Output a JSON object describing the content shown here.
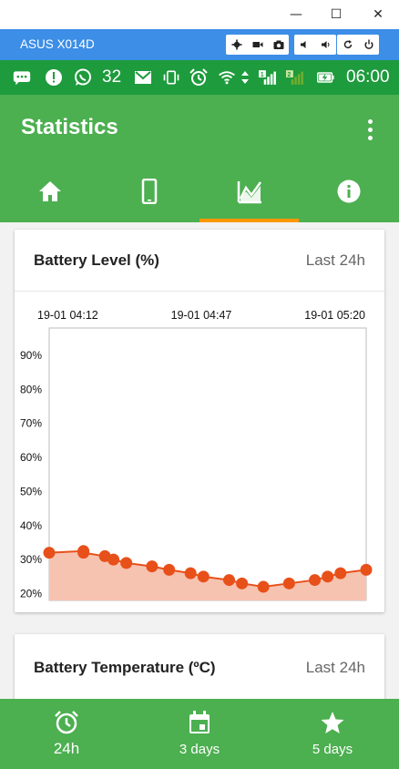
{
  "window": {
    "controls": [
      "—",
      "☐",
      "✕"
    ]
  },
  "emulator": {
    "device_name": "ASUS X014D"
  },
  "status_bar": {
    "notification_count": "32",
    "time": "06:00",
    "sim1": "1",
    "sim2": "2"
  },
  "app_bar": {
    "title": "Statistics",
    "tabs": [
      {
        "name": "home",
        "icon": "home-icon"
      },
      {
        "name": "device",
        "icon": "phone-icon"
      },
      {
        "name": "statistics",
        "icon": "chart-icon",
        "active": true
      },
      {
        "name": "info",
        "icon": "info-icon"
      }
    ]
  },
  "battery_level_card": {
    "title": "Battery Level (%)",
    "range": "Last 24h"
  },
  "battery_temperature_card": {
    "title": "Battery Temperature (ºC)",
    "range": "Last 24h"
  },
  "chart_data": {
    "type": "area",
    "title": "Battery Level (%)",
    "x_tick_labels": [
      "19-01 04:12",
      "19-01 04:47",
      "19-01 05:20"
    ],
    "y_tick_labels": [
      "20%",
      "30%",
      "40%",
      "50%",
      "60%",
      "70%",
      "80%",
      "90%"
    ],
    "ylim": [
      18,
      98
    ],
    "x": [
      "04:12",
      "04:20",
      "04:20",
      "04:25",
      "04:27",
      "04:30",
      "04:36",
      "04:40",
      "04:45",
      "04:48",
      "04:54",
      "04:57",
      "05:02",
      "05:08",
      "05:14",
      "05:17",
      "05:20",
      "05:26"
    ],
    "values": [
      32,
      32.5,
      32,
      31,
      30,
      29,
      28,
      27,
      26,
      25,
      24,
      23,
      22,
      23,
      24,
      25,
      26,
      27
    ],
    "colors": {
      "line": "#e8501a",
      "fill": "#f7c3b1",
      "point": "#e8501a"
    }
  },
  "bottom_bar": {
    "items": [
      {
        "label": "24h",
        "icon": "alarm-clock-icon",
        "active": true
      },
      {
        "label": "3 days",
        "icon": "calendar-icon"
      },
      {
        "label": "5 days",
        "icon": "star-icon"
      }
    ]
  }
}
